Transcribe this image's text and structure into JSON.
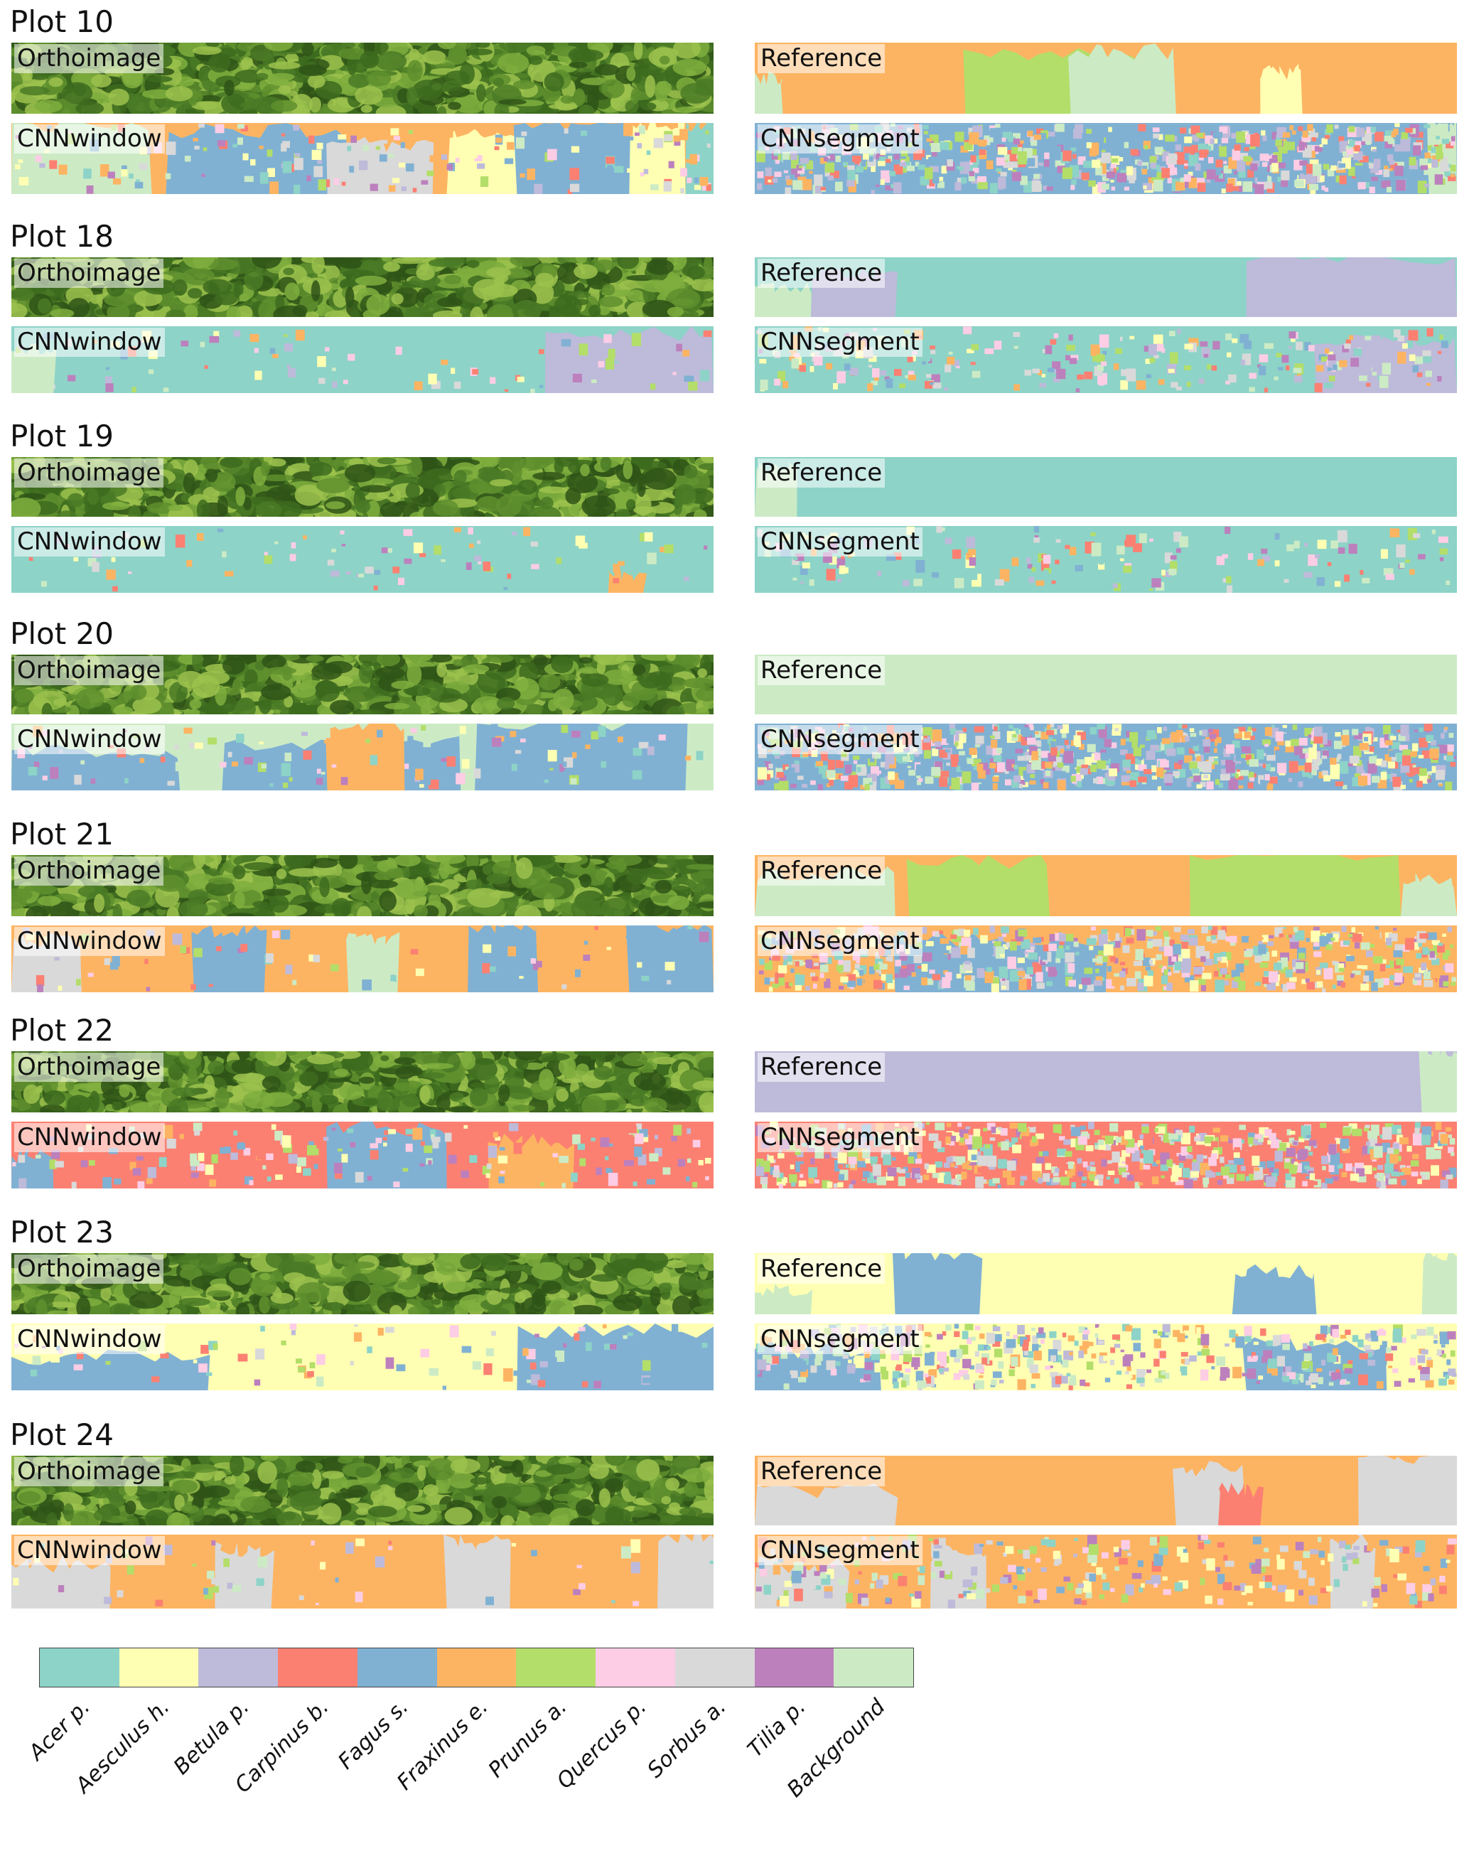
{
  "panel_labels": {
    "ortho": "Orthoimage",
    "reference": "Reference",
    "window": "CNNwindow",
    "segment": "CNNsegment"
  },
  "classes": [
    {
      "name": "Acer p.",
      "color": "#8dd3c7"
    },
    {
      "name": "Aesculus h.",
      "color": "#ffffb3"
    },
    {
      "name": "Betula p.",
      "color": "#bebada"
    },
    {
      "name": "Carpinus b.",
      "color": "#fb8072"
    },
    {
      "name": "Fagus s.",
      "color": "#80b1d3"
    },
    {
      "name": "Fraxinus e.",
      "color": "#fdb462"
    },
    {
      "name": "Prunus a.",
      "color": "#b3de69"
    },
    {
      "name": "Quercus p.",
      "color": "#fccde5"
    },
    {
      "name": "Sorbus a.",
      "color": "#d9d9d9"
    },
    {
      "name": "Tilia p.",
      "color": "#bc80bd"
    },
    {
      "name": "Background",
      "color": "#ccebc5"
    }
  ],
  "ortho_colors": [
    "#3d6b1f",
    "#5f8f2e",
    "#7fae3e",
    "#2f5418",
    "#9cc24e",
    "#4a7a26"
  ],
  "plots": [
    {
      "title": "Plot 10",
      "reference": {
        "base": "Fraxinus e.",
        "regions": [
          [
            "Prunus a.",
            0.3,
            0.55,
            0.2
          ],
          [
            "Background",
            0.45,
            0.6,
            0.12
          ],
          [
            "Fraxinus e.",
            0.7,
            1.0,
            0
          ],
          [
            "Aesculus h.",
            0.72,
            0.78,
            0.4
          ],
          [
            "Background",
            0.0,
            0.04,
            0.5
          ]
        ]
      },
      "window": {
        "base": "Fraxinus e.",
        "regions": [
          [
            "Background",
            0.0,
            0.2,
            0
          ],
          [
            "Fagus s.",
            0.22,
            0.48,
            0.1
          ],
          [
            "Sorbus a.",
            0.45,
            0.6,
            0.3
          ],
          [
            "Aesculus h.",
            0.62,
            0.72,
            0.2
          ],
          [
            "Fagus s.",
            0.72,
            0.88,
            0
          ],
          [
            "Aesculus h.",
            0.88,
            0.96,
            0
          ],
          [
            "Acer p.",
            0.96,
            1.0,
            0
          ]
        ],
        "speckle": 0.12
      },
      "segment": {
        "base": "Fagus s.",
        "regions": [
          [
            "Background",
            0.96,
            1.0,
            0
          ]
        ],
        "speckle": 0.55
      }
    },
    {
      "title": "Plot 18",
      "reference": {
        "base": "Acer p.",
        "regions": [
          [
            "Betula p.",
            0.7,
            1.0,
            0
          ],
          [
            "Background",
            0.0,
            0.08,
            0.5
          ],
          [
            "Betula p.",
            0.08,
            0.2,
            0.3
          ]
        ]
      },
      "window": {
        "base": "Acer p.",
        "regions": [
          [
            "Background",
            0.0,
            0.06,
            0.3
          ],
          [
            "Betula p.",
            0.76,
            1.0,
            0.1
          ]
        ],
        "speckle": 0.06
      },
      "segment": {
        "base": "Acer p.",
        "regions": [
          [
            "Betula p.",
            0.8,
            1.0,
            0.2
          ]
        ],
        "speckle": 0.2
      }
    },
    {
      "title": "Plot 19",
      "reference": {
        "base": "Acer p.",
        "regions": [
          [
            "Background",
            0.0,
            0.06,
            0.2
          ]
        ]
      },
      "window": {
        "base": "Acer p.",
        "regions": [
          [
            "Fraxinus e.",
            0.85,
            0.9,
            0.7
          ]
        ],
        "speckle": 0.06
      },
      "segment": {
        "base": "Acer p.",
        "regions": [],
        "speckle": 0.12
      }
    },
    {
      "title": "Plot 20",
      "reference": {
        "base": "Background",
        "regions": []
      },
      "window": {
        "base": "Background",
        "regions": [
          [
            "Fagus s.",
            0.0,
            0.24,
            0.4
          ],
          [
            "Fagus s.",
            0.3,
            0.64,
            0.3
          ],
          [
            "Fagus s.",
            0.66,
            0.96,
            0
          ],
          [
            "Fraxinus e.",
            0.45,
            0.56,
            0.0
          ]
        ],
        "speckle": 0.08
      },
      "segment": {
        "base": "Fagus s.",
        "regions": [],
        "speckle": 0.6
      }
    },
    {
      "title": "Plot 21",
      "reference": {
        "base": "Fraxinus e.",
        "regions": [
          [
            "Background",
            0.0,
            0.2,
            0.3
          ],
          [
            "Prunus a.",
            0.22,
            0.42,
            0.1
          ],
          [
            "Prunus a.",
            0.62,
            0.92,
            0
          ],
          [
            "Background",
            0.92,
            1.0,
            0.4
          ]
        ]
      },
      "window": {
        "base": "Fraxinus e.",
        "regions": [
          [
            "Sorbus a.",
            0.0,
            0.1,
            0.2
          ],
          [
            "Fagus s.",
            0.26,
            0.36,
            0.1
          ],
          [
            "Fagus s.",
            0.65,
            0.75,
            0
          ],
          [
            "Fagus s.",
            0.88,
            1.0,
            0
          ],
          [
            "Background",
            0.48,
            0.55,
            0.2
          ]
        ],
        "speckle": 0.05
      },
      "segment": {
        "base": "Fraxinus e.",
        "regions": [
          [
            "Fagus s.",
            0.2,
            0.5,
            0.2
          ]
        ],
        "speckle": 0.5
      }
    },
    {
      "title": "Plot 22",
      "reference": {
        "base": "Betula p.",
        "regions": [
          [
            "Background",
            0.95,
            1.0,
            0
          ]
        ]
      },
      "window": {
        "base": "Carpinus b.",
        "regions": [
          [
            "Fagus s.",
            0.0,
            0.06,
            0.5
          ],
          [
            "Fagus s.",
            0.45,
            0.62,
            0.1
          ],
          [
            "Fraxinus e.",
            0.68,
            0.8,
            0.3
          ]
        ],
        "speckle": 0.12
      },
      "segment": {
        "base": "Carpinus b.",
        "regions": [],
        "speckle": 0.5
      }
    },
    {
      "title": "Plot 23",
      "reference": {
        "base": "Aesculus h.",
        "regions": [
          [
            "Background",
            0.0,
            0.08,
            0.6
          ],
          [
            "Fagus s.",
            0.2,
            0.32,
            0.0
          ],
          [
            "Fagus s.",
            0.68,
            0.8,
            0.3
          ],
          [
            "Background",
            0.95,
            1.0,
            0
          ]
        ]
      },
      "window": {
        "base": "Aesculus h.",
        "regions": [
          [
            "Fagus s.",
            0.0,
            0.28,
            0.5
          ],
          [
            "Fagus s.",
            0.72,
            1.0,
            0.1
          ]
        ],
        "speckle": 0.06
      },
      "segment": {
        "base": "Aesculus h.",
        "regions": [
          [
            "Fagus s.",
            0.0,
            0.18,
            0.4
          ],
          [
            "Fagus s.",
            0.7,
            0.9,
            0.3
          ]
        ],
        "speckle": 0.35
      }
    },
    {
      "title": "Plot 24",
      "reference": {
        "base": "Fraxinus e.",
        "regions": [
          [
            "Sorbus a.",
            0.0,
            0.2,
            0.5
          ],
          [
            "Sorbus a.",
            0.6,
            0.7,
            0.2
          ],
          [
            "Sorbus a.",
            0.86,
            1.0,
            0
          ],
          [
            "Carpinus b.",
            0.66,
            0.72,
            0.5
          ]
        ]
      },
      "window": {
        "base": "Fraxinus e.",
        "regions": [
          [
            "Sorbus a.",
            0.0,
            0.14,
            0.4
          ],
          [
            "Sorbus a.",
            0.29,
            0.37,
            0.2
          ],
          [
            "Sorbus a.",
            0.62,
            0.71,
            0.1
          ],
          [
            "Sorbus a.",
            0.92,
            1.0,
            0
          ]
        ],
        "speckle": 0.04
      },
      "segment": {
        "base": "Fraxinus e.",
        "regions": [
          [
            "Sorbus a.",
            0.0,
            0.13,
            0.4
          ],
          [
            "Sorbus a.",
            0.25,
            0.33,
            0.2
          ],
          [
            "Sorbus a.",
            0.82,
            0.88,
            0.1
          ]
        ],
        "speckle": 0.2
      }
    }
  ]
}
